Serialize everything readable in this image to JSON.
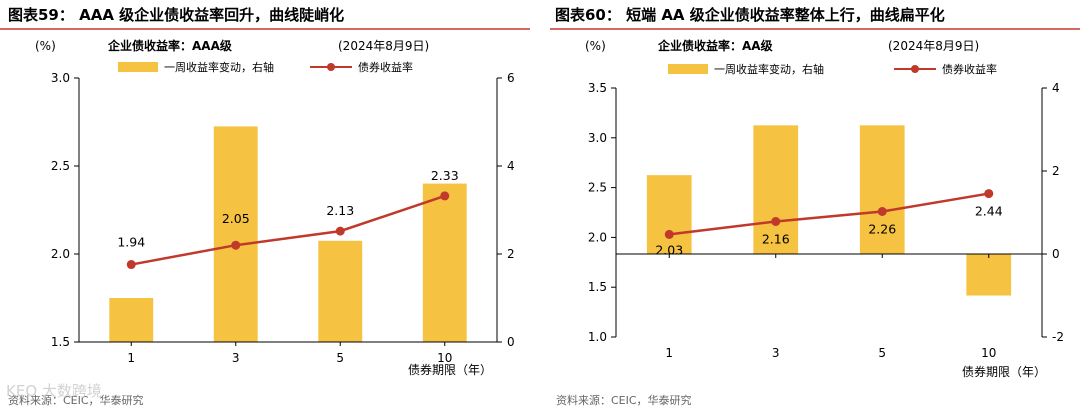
{
  "colors": {
    "title_rule": "#c0392b",
    "bar": "#f5c242",
    "line": "#c0392b",
    "text": "#000000",
    "axis": "#000000",
    "source_text": "#666666"
  },
  "watermark": "KEO 大数跨境",
  "chart_data": [
    {
      "type": "bar+line",
      "figure_title": "图表59：  AAA 级企业债收益率回升，曲线陡峭化",
      "left_unit": "(%)",
      "subtitle": "企业债收益率：AAA级",
      "date_note": "(2024年8月9日)",
      "legend": [
        "一周收益率变动，右轴",
        "债券收益率"
      ],
      "categories": [
        "1",
        "3",
        "5",
        "10"
      ],
      "xlabel": "债券期限（年）",
      "series": [
        {
          "name": "一周收益率变动，右轴",
          "type": "bar",
          "axis": "right",
          "values": [
            1.0,
            4.9,
            2.3,
            3.6
          ]
        },
        {
          "name": "债券收益率",
          "type": "line",
          "axis": "left",
          "values": [
            1.94,
            2.05,
            2.13,
            2.33
          ]
        }
      ],
      "data_labels": [
        "1.94",
        "2.05",
        "2.13",
        "2.33"
      ],
      "left_ylim": [
        1.5,
        3.0
      ],
      "left_ticks": [
        "1.5",
        "2.0",
        "2.5",
        "3.0"
      ],
      "right_ylim": [
        0,
        6
      ],
      "right_ticks": [
        "0",
        "2",
        "4",
        "6"
      ],
      "source": "资料来源：CEIC，华泰研究"
    },
    {
      "type": "bar+line",
      "figure_title": "图表60：  短端 AA 级企业债收益率整体上行，曲线扁平化",
      "left_unit": "(%)",
      "subtitle": "企业债收益率：AA级",
      "date_note": "(2024年8月9日)",
      "legend": [
        "一周收益率变动，右轴",
        "债券收益率"
      ],
      "categories": [
        "1",
        "3",
        "5",
        "10"
      ],
      "xlabel": "债券期限（年）",
      "series": [
        {
          "name": "一周收益率变动，右轴",
          "type": "bar",
          "axis": "right",
          "values": [
            1.9,
            3.1,
            3.1,
            -1.0
          ]
        },
        {
          "name": "债券收益率",
          "type": "line",
          "axis": "left",
          "values": [
            2.03,
            2.16,
            2.26,
            2.44
          ]
        }
      ],
      "data_labels": [
        "2.03",
        "2.16",
        "2.26",
        "2.44"
      ],
      "left_ylim": [
        1.0,
        3.5
      ],
      "left_ticks": [
        "1.0",
        "1.5",
        "2.0",
        "2.5",
        "3.0",
        "3.5"
      ],
      "right_ylim": [
        -2,
        4
      ],
      "right_ticks": [
        "-2",
        "0",
        "2",
        "4"
      ],
      "source": "资料来源：CEIC，华泰研究"
    }
  ]
}
